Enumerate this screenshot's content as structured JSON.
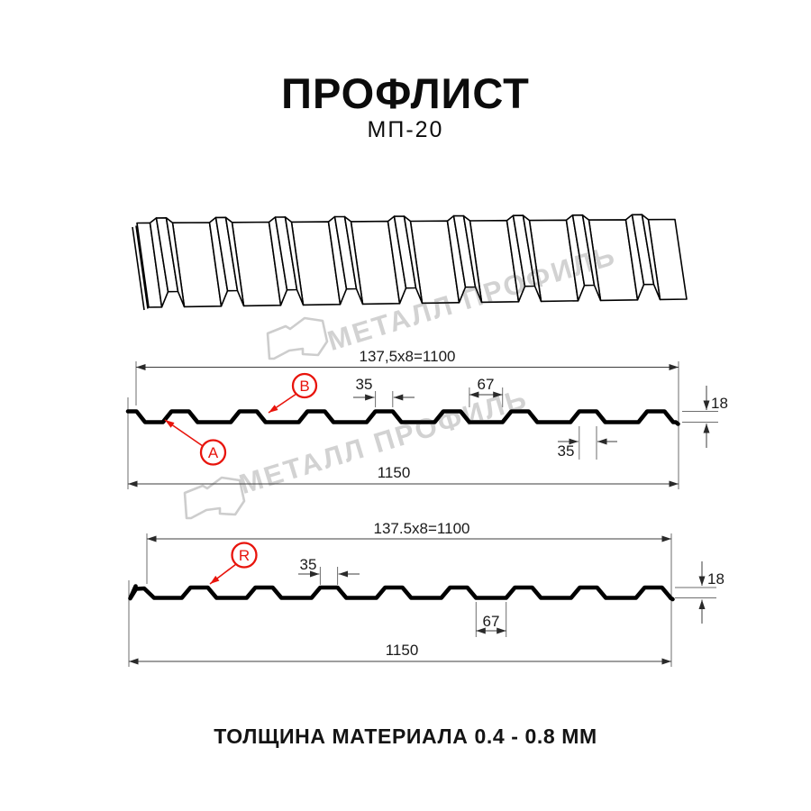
{
  "header": {
    "title": "ПРОФЛИСТ",
    "subtitle": "МП-20"
  },
  "footer": {
    "note": "ТОЛЩИНА МАТЕРИАЛА 0.4 - 0.8 ММ"
  },
  "watermark": {
    "text": "МЕТАЛЛ ПРОФИЛЬ",
    "logo_icon": "metall-profil-logo",
    "color": "#d2d2d2"
  },
  "colors": {
    "line": "#000000",
    "dimension": "#3c3c3c",
    "label_red": "#e8140c",
    "text": "#141414",
    "watermark": "#d2d2d2"
  },
  "profiles": {
    "top": {
      "dim_pitch": "137,5x8=1100",
      "dim_rib_width": "35",
      "dim_valley_width": "67",
      "dim_rib_width_right": "35",
      "dim_height": "18",
      "dim_overall": "1150",
      "label_a": "A",
      "label_b": "B"
    },
    "bottom": {
      "dim_pitch": "137.5x8=1100",
      "dim_rib_width": "35",
      "dim_valley_width": "67",
      "dim_height": "18",
      "dim_overall": "1150",
      "label_r": "R"
    }
  }
}
